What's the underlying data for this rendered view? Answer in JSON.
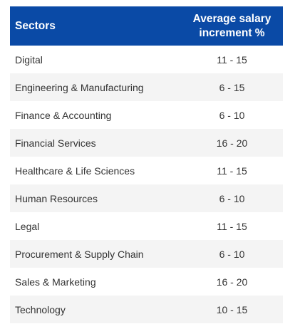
{
  "table": {
    "headers": {
      "sectors": "Sectors",
      "increment_line1": "Average salary",
      "increment_line2": "increment %"
    },
    "rows": [
      {
        "sector": "Digital",
        "increment": "11 - 15"
      },
      {
        "sector": "Engineering & Manufacturing",
        "increment": "6 - 15"
      },
      {
        "sector": "Finance & Accounting",
        "increment": "6 - 10"
      },
      {
        "sector": "Financial Services",
        "increment": "16 - 20"
      },
      {
        "sector": "Healthcare & Life Sciences",
        "increment": "11 - 15"
      },
      {
        "sector": "Human Resources",
        "increment": "6 - 10"
      },
      {
        "sector": "Legal",
        "increment": "11 - 15"
      },
      {
        "sector": "Procurement & Supply Chain",
        "increment": "6 - 10"
      },
      {
        "sector": "Sales & Marketing",
        "increment": "16 - 20"
      },
      {
        "sector": "Technology",
        "increment": "10 - 15"
      }
    ]
  },
  "colors": {
    "header_bg": "#0a4aa6",
    "header_text": "#ffffff",
    "stripe_bg": "#f4f4f4",
    "body_text": "#333333"
  }
}
